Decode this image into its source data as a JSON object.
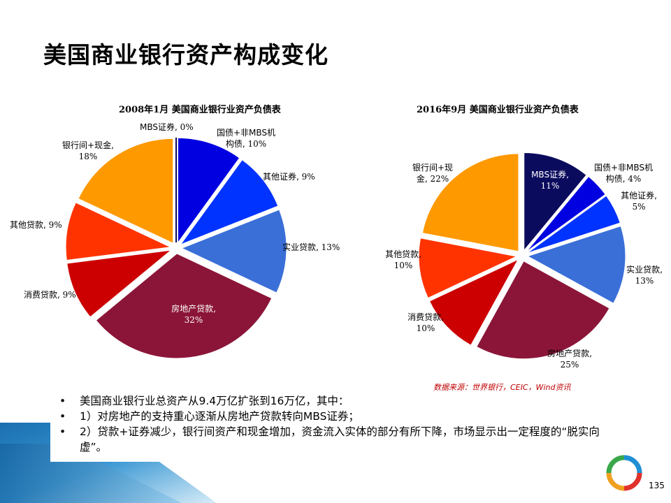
{
  "slide": {
    "title": "美国商业银行资产构成变化",
    "page_number": "135",
    "source": "数据来源：世界银行，CEIC，Wind资讯"
  },
  "bullets": [
    "美国商业银行业总资产从9.4万亿扩张到16万亿，其中：",
    "1）对房地产的支持重心逐渐从房地产贷款转向MBS证券；",
    "2）贷款+证券减少，银行间资产和现金增加，资金流入实体的部分有所下降，市场显示出一定程度的“脱实向虚”。"
  ],
  "chart_data": [
    {
      "type": "pie",
      "title": "2008年1月 美国商业银行业资产负债表",
      "slices": [
        {
          "name": "MBS证券",
          "value": 0,
          "label": "0%",
          "color": "#0b0b5e"
        },
        {
          "name": "国债+非MBS机构债",
          "value": 10,
          "label": "10%",
          "color": "#0000e0"
        },
        {
          "name": "其他证券",
          "value": 9,
          "label": "9%",
          "color": "#0033ff"
        },
        {
          "name": "实业贷款",
          "value": 13,
          "label": "13%",
          "color": "#3a6fd8"
        },
        {
          "name": "房地产贷款",
          "value": 32,
          "label": "32%",
          "color": "#8b1538"
        },
        {
          "name": "消费贷款",
          "value": 9,
          "label": "9%",
          "color": "#cc0000"
        },
        {
          "name": "其他贷款",
          "value": 9,
          "label": "9%",
          "color": "#ff3300"
        },
        {
          "name": "银行间+现金",
          "value": 18,
          "label": "18%",
          "color": "#ff9900"
        }
      ]
    },
    {
      "type": "pie",
      "title": "2016年9月 美国商业银行业资产负债表",
      "slices": [
        {
          "name": "MBS证券",
          "value": 11,
          "label": "11%",
          "color": "#0b0b5e"
        },
        {
          "name": "国债+非MBS机构债",
          "value": 4,
          "label": "4%",
          "color": "#0000e0"
        },
        {
          "name": "其他证券",
          "value": 5,
          "label": "5%",
          "color": "#0033ff"
        },
        {
          "name": "实业贷款",
          "value": 13,
          "label": "13%",
          "color": "#3a6fd8"
        },
        {
          "name": "房地产贷款",
          "value": 25,
          "label": "25%",
          "color": "#8b1538"
        },
        {
          "name": "消费贷款",
          "value": 10,
          "label": "10%",
          "color": "#cc0000"
        },
        {
          "name": "其他贷款",
          "value": 10,
          "label": "10%",
          "color": "#ff3300"
        },
        {
          "name": "银行间+现金",
          "value": 22,
          "label": "22%",
          "color": "#ff9900"
        }
      ]
    }
  ]
}
